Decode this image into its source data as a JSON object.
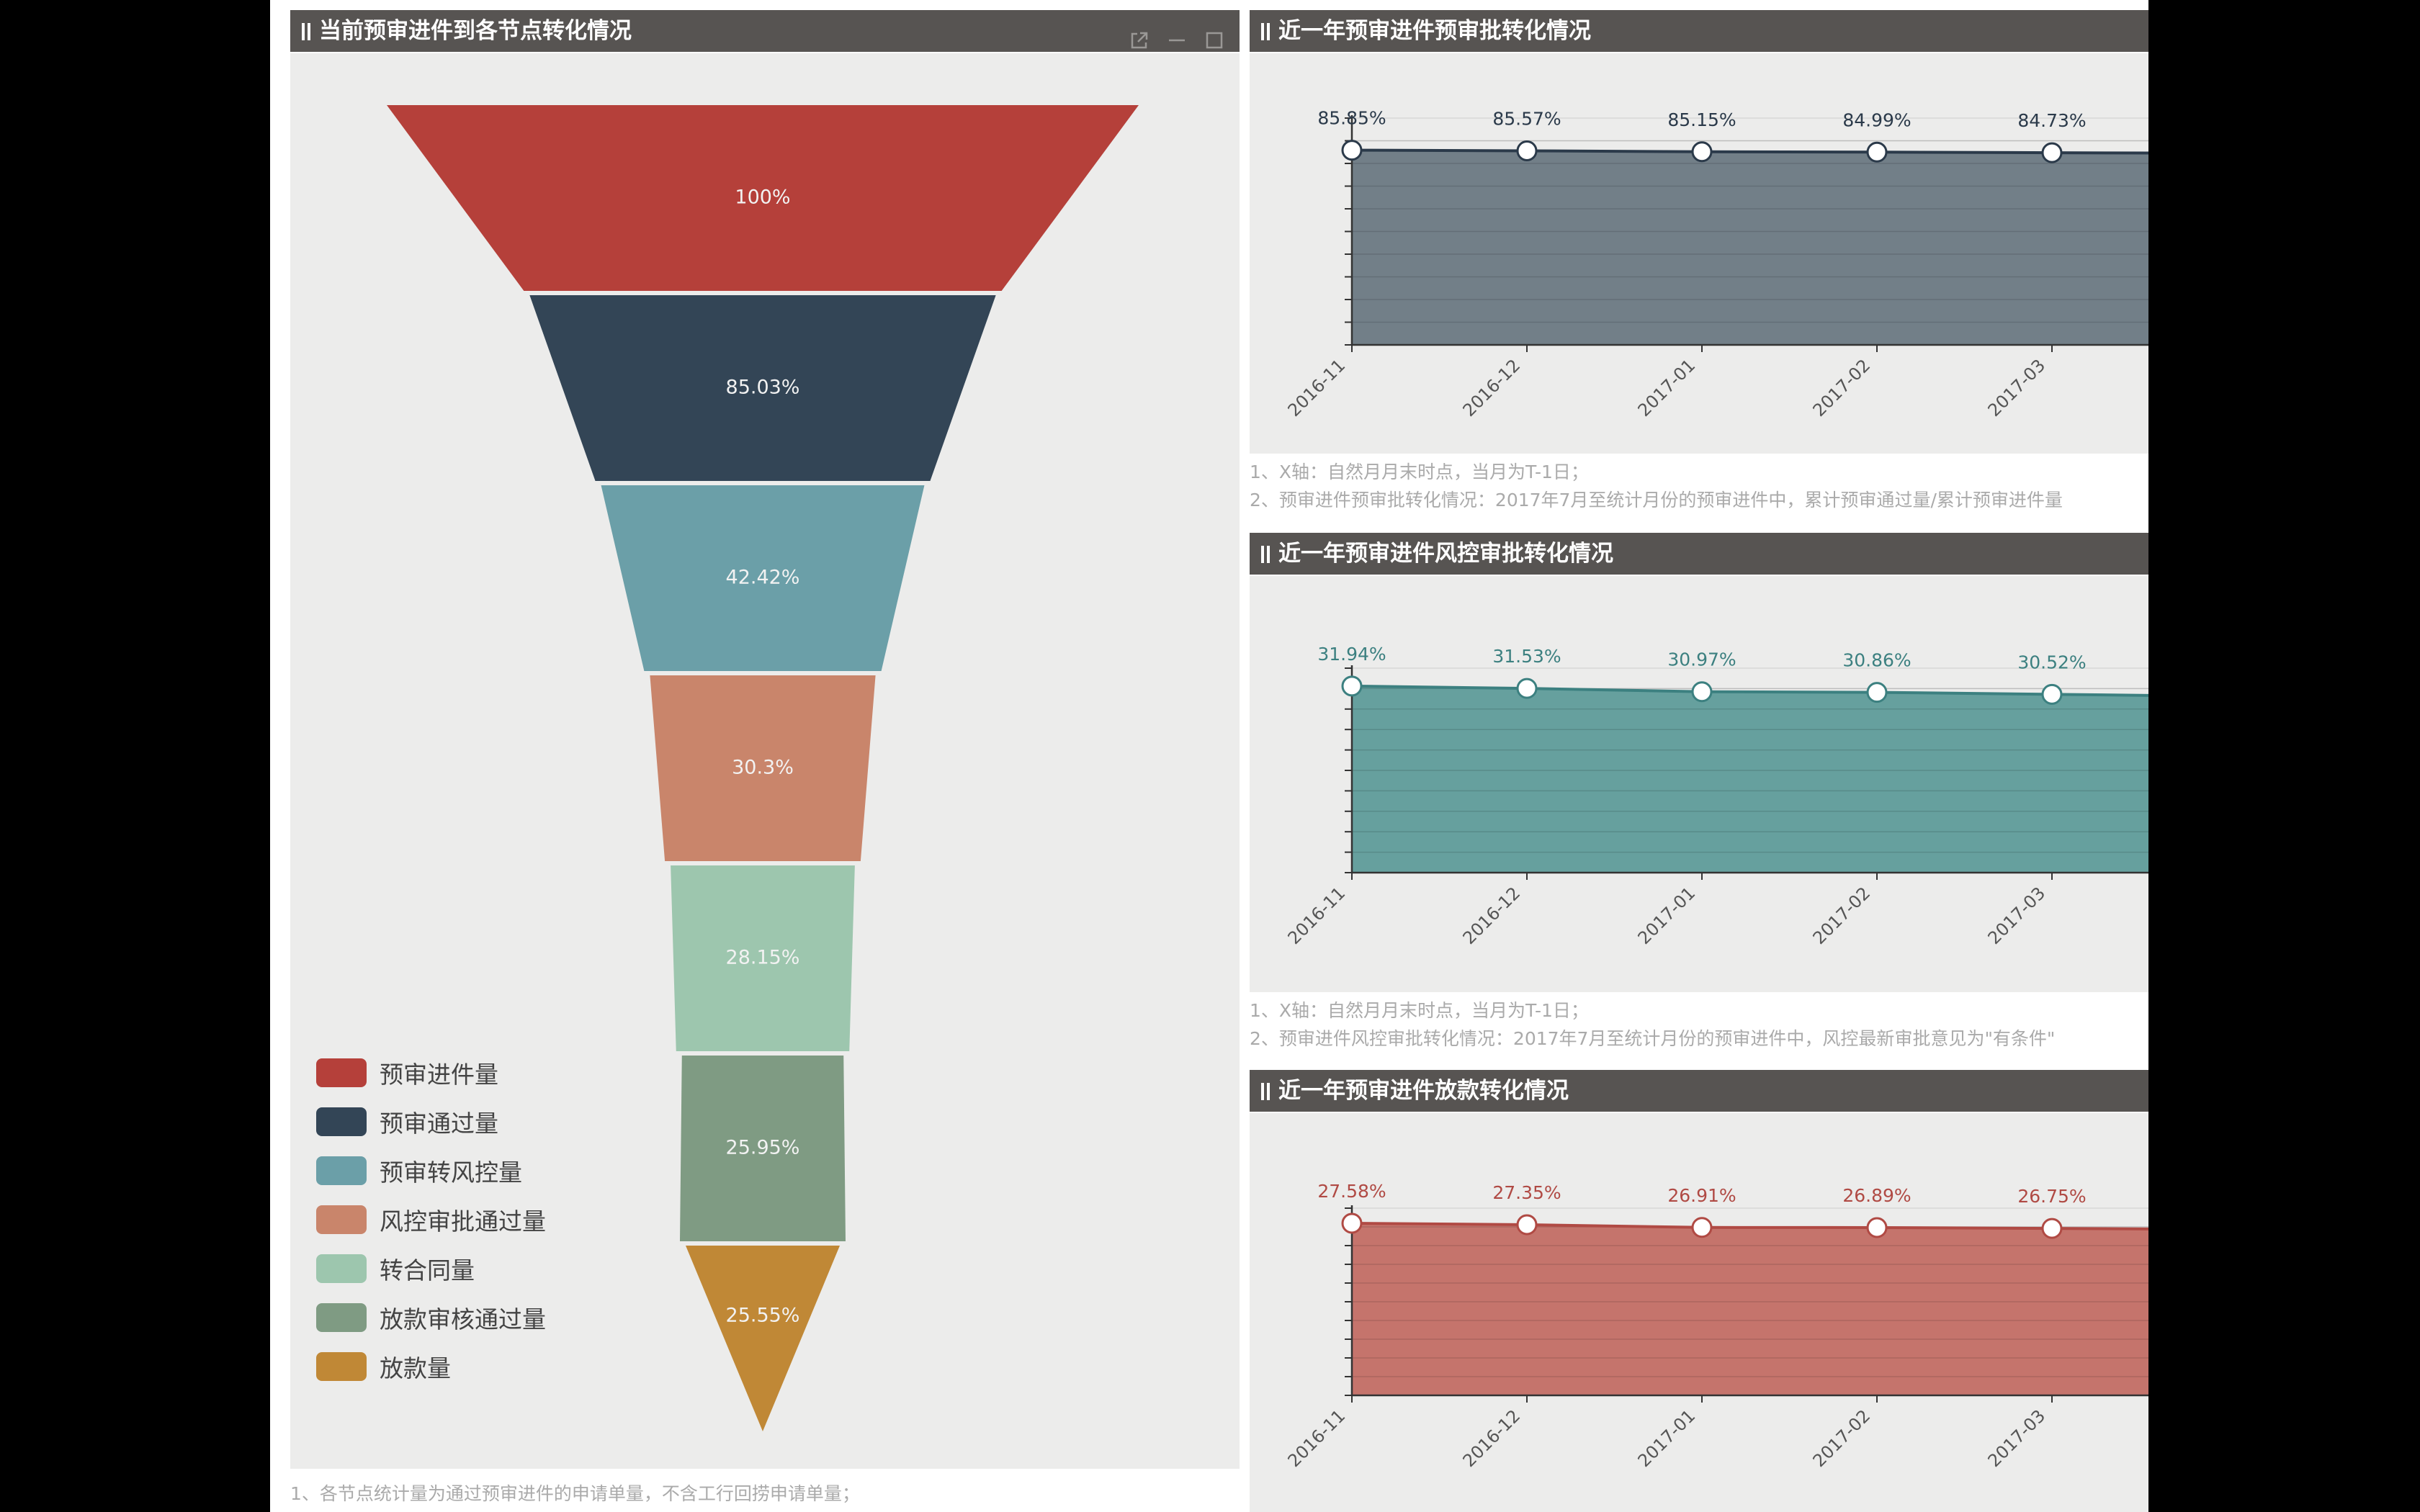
{
  "funnel_panel": {
    "title": "当前预审进件到各节点转化情况",
    "tools": [
      "external-link-icon",
      "minimize-icon",
      "maximize-icon"
    ],
    "footnotes": [
      "1、各节点统计量为通过预审进件的申请单量，不含工行回捞申请单量；"
    ]
  },
  "panels": [
    {
      "title": "近一年预审进件预审批转化情况",
      "notes": [
        "1、X轴：自然月月末时点，当月为T-1日；",
        "2、预审进件预审批转化情况：2017年7月至统计月份的预审进件中，累计预审通过量/累计预审进件量"
      ]
    },
    {
      "title": "近一年预审进件风控审批转化情况",
      "notes": [
        "1、X轴：自然月月末时点，当月为T-1日；",
        "2、预审进件风控审批转化情况：2017年7月至统计月份的预审进件中，风控最新审批意见为\"有条件\""
      ]
    },
    {
      "title": "近一年预审进件放款转化情况",
      "notes": []
    }
  ],
  "chart_data": [
    {
      "type": "funnel",
      "title": "当前预审进件到各节点转化情况",
      "categories": [
        "预审进件量",
        "预审通过量",
        "预审转风控量",
        "风控审批通过量",
        "转合同量",
        "放款审核通过量",
        "放款量"
      ],
      "values": [
        100,
        85.03,
        42.42,
        30.3,
        28.15,
        25.95,
        25.55
      ],
      "labels": [
        "100%",
        "85.03%",
        "42.42%",
        "30.3%",
        "28.15%",
        "25.95%",
        "25.55%"
      ],
      "colors": [
        "#b5403a",
        "#334556",
        "#6b9fa8",
        "#c9856b",
        "#9dc6ae",
        "#7f9b83",
        "#c08836"
      ],
      "legend": "bottom-left"
    },
    {
      "type": "area",
      "title": "近一年预审进件预审批转化情况",
      "x": [
        "2016-11",
        "2016-12",
        "2017-01",
        "2017-02",
        "2017-03"
      ],
      "values": [
        85.85,
        85.57,
        85.15,
        84.99,
        84.73
      ],
      "labels": [
        "85.85%",
        "85.57%",
        "85.15%",
        "84.99%",
        "84.73%"
      ],
      "ylim": [
        0,
        100
      ],
      "color": "#6b7983",
      "line_color": "#2b3a4a"
    },
    {
      "type": "area",
      "title": "近一年预审进件风控审批转化情况",
      "x": [
        "2016-11",
        "2016-12",
        "2017-01",
        "2017-02",
        "2017-03"
      ],
      "values": [
        31.94,
        31.53,
        30.97,
        30.86,
        30.52
      ],
      "labels": [
        "31.94%",
        "31.53%",
        "30.97%",
        "30.86%",
        "30.52%"
      ],
      "ylim": [
        0,
        35
      ],
      "color": "#5f9c9a",
      "line_color": "#3c8080"
    },
    {
      "type": "area",
      "title": "近一年预审进件放款转化情况",
      "x": [
        "2016-11",
        "2016-12",
        "2017-01",
        "2017-02",
        "2017-03"
      ],
      "values": [
        27.58,
        27.35,
        26.91,
        26.89,
        26.75
      ],
      "labels": [
        "27.58%",
        "27.35%",
        "26.91%",
        "26.89%",
        "26.75%"
      ],
      "ylim": [
        0,
        30
      ],
      "color": "#c36e65",
      "line_color": "#b04a44"
    }
  ]
}
